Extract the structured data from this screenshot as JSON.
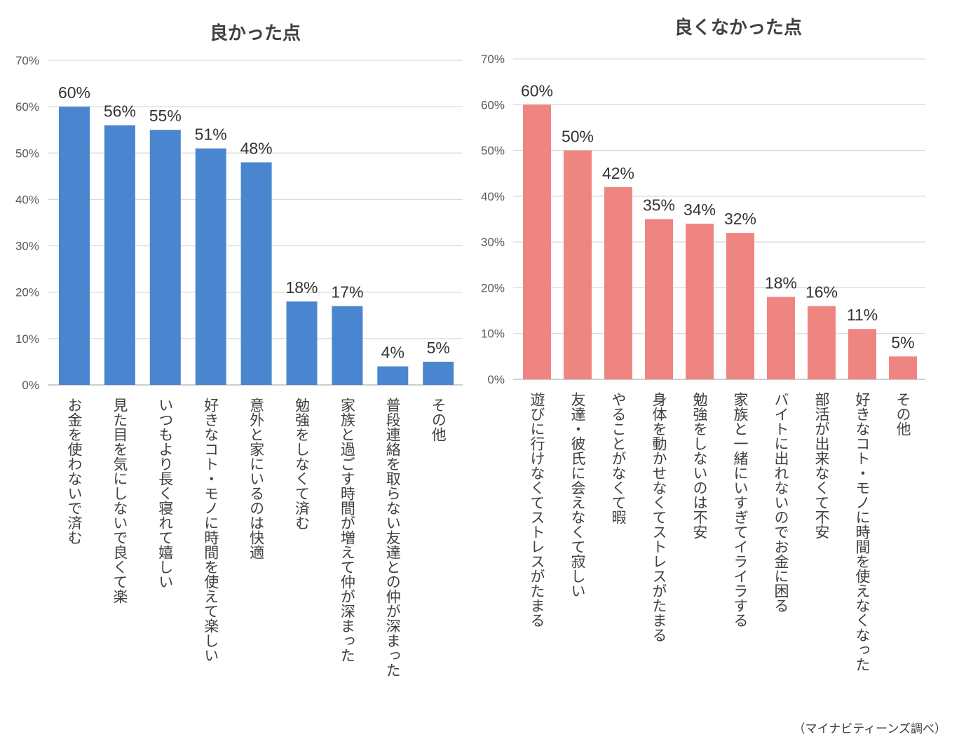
{
  "source_note": "（マイナビティーンズ調べ）",
  "chart_data": [
    {
      "type": "bar",
      "title": "良かった点",
      "color": "#4a86cf",
      "ylim": [
        0,
        70
      ],
      "yticks": [
        "0%",
        "10%",
        "20%",
        "30%",
        "40%",
        "50%",
        "60%",
        "70%"
      ],
      "grid": true,
      "categories": [
        "お金を使わないで済む",
        "見た目を気にしないで良くて楽",
        "いつもより長く寝れて嬉しい",
        "好きなコト・モノに時間を使えて楽しい",
        "意外と家にいるのは快適",
        "勉強をしなくて済む",
        "家族と過ごす時間が増えて仲が深まった",
        "普段連絡を取らない友達との仲が深まった",
        "その他"
      ],
      "values": [
        60,
        56,
        55,
        51,
        48,
        18,
        17,
        4,
        5
      ],
      "value_labels": [
        "60%",
        "56%",
        "55%",
        "51%",
        "48%",
        "18%",
        "17%",
        "4%",
        "5%"
      ]
    },
    {
      "type": "bar",
      "title": "良くなかった点",
      "color": "#ef8580",
      "ylim": [
        0,
        70
      ],
      "yticks": [
        "0%",
        "10%",
        "20%",
        "30%",
        "40%",
        "50%",
        "60%",
        "70%"
      ],
      "grid": true,
      "categories": [
        "遊びに行けなくてストレスがたまる",
        "友達・彼氏に会えなくて寂しい",
        "やることがなくて暇",
        "身体を動かせなくてストレスがたまる",
        "勉強をしないのは不安",
        "家族と一緒にいすぎてイライラする",
        "バイトに出れないのでお金に困る",
        "部活が出来なくて不安",
        "好きなコト・モノに時間を使えなくなった",
        "その他"
      ],
      "values": [
        60,
        50,
        42,
        35,
        34,
        32,
        18,
        16,
        11,
        5
      ],
      "value_labels": [
        "60%",
        "50%",
        "42%",
        "35%",
        "34%",
        "32%",
        "18%",
        "16%",
        "11%",
        "5%"
      ]
    }
  ]
}
